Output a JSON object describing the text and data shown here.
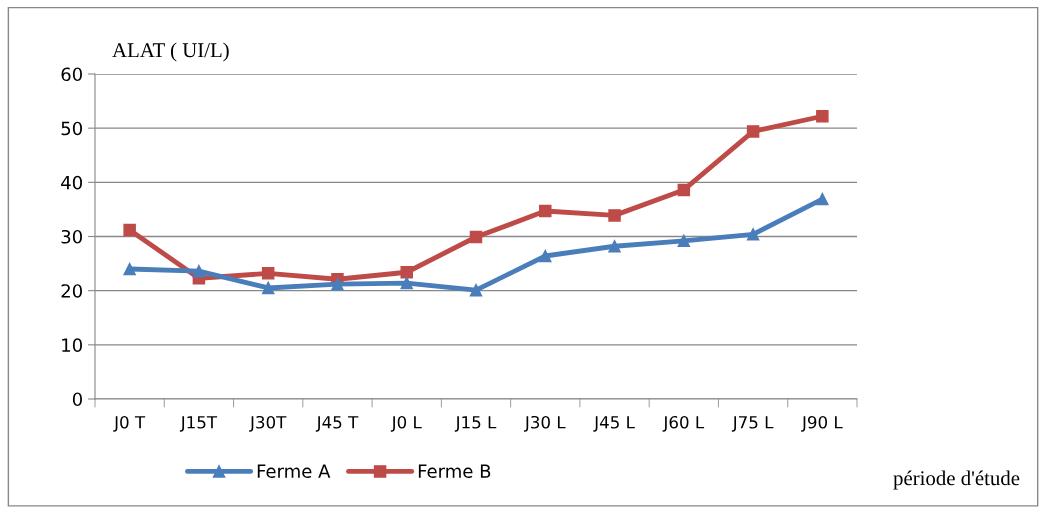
{
  "chart_data": {
    "type": "line",
    "ylabel": "ALAT ( UI/L)",
    "xlabel": "période d'étude",
    "categories": [
      "J0 T",
      "J15T",
      "J30T",
      "J45 T",
      "J0 L",
      "J15 L",
      "J30 L",
      "J45 L",
      "J60 L",
      "J75 L",
      "J90 L"
    ],
    "series": [
      {
        "name": "Ferme A",
        "color": "#4a7ebb",
        "marker": "triangle",
        "values": [
          24.0,
          23.6,
          20.5,
          21.2,
          21.4,
          20.1,
          26.4,
          28.2,
          29.2,
          30.4,
          36.9
        ]
      },
      {
        "name": "Ferme B",
        "color": "#be4b48",
        "marker": "square",
        "values": [
          31.2,
          22.3,
          23.2,
          22.1,
          23.4,
          29.9,
          34.7,
          33.9,
          38.6,
          49.4,
          52.2
        ]
      }
    ],
    "ylim": [
      0,
      60
    ],
    "yticks": [
      0,
      10,
      20,
      30,
      40,
      50,
      60
    ],
    "grid": "y",
    "legend": "bottom left",
    "line_style": "solid"
  }
}
